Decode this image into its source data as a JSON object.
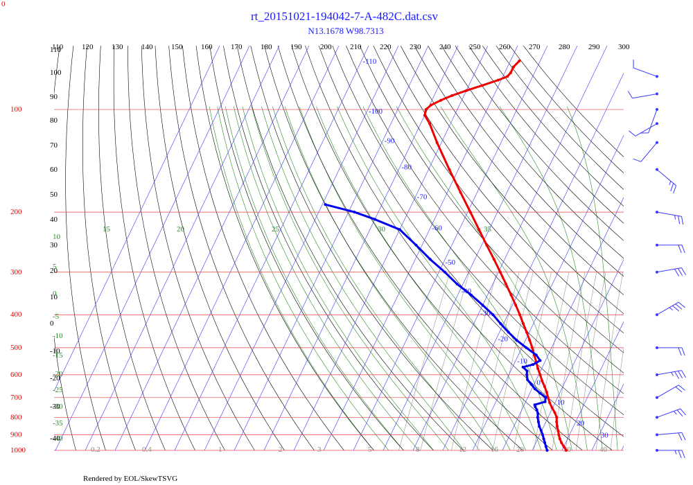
{
  "header": {
    "title": "rt_20151021-194042-7-A-482C.dat.csv",
    "subtitle": "N13.1678 W98.7313",
    "corner_label": "0",
    "footer": "Rendered by EOL/SkewTSVG"
  },
  "colors": {
    "temperature": "#ee0000",
    "dewpoint": "#0000ee",
    "isobar": "#e84040",
    "isotherm": "#3a3aff",
    "dry_adiabat": "#000000",
    "moist_adiabat": "#2a8a2a",
    "mixing_ratio": "#999999",
    "wind": "#3a3aff"
  },
  "chart_data": {
    "type": "skew-t",
    "pressure_levels_hpa": [
      "1000",
      "900",
      "800",
      "700",
      "600",
      "500",
      "400",
      "300",
      "200",
      "100"
    ],
    "top_temperature_labels": [
      "110",
      "120",
      "130",
      "140",
      "150",
      "160",
      "170",
      "180",
      "190",
      "200",
      "210",
      "220",
      "230",
      "240",
      "250",
      "260",
      "270",
      "280",
      "290",
      "300"
    ],
    "left_potential_temperature_labels": [
      "110",
      "100",
      "90",
      "80",
      "70",
      "60",
      "50",
      "40",
      "30",
      "20",
      "10",
      "0",
      "-10",
      "-20",
      "-30",
      "-40"
    ],
    "isotherm_labels_c": [
      "-110",
      "-100",
      "-90",
      "-80",
      "-70",
      "-60",
      "-50",
      "-40",
      "-30",
      "-20",
      "-10",
      "0",
      "10",
      "20",
      "30"
    ],
    "moist_adiabat_labels_top": [
      "15",
      "20",
      "25",
      "30",
      "35"
    ],
    "moist_adiabat_labels_left": [
      "10",
      "5",
      "0",
      "-5",
      "-10",
      "-15",
      "-20",
      "-25",
      "-30",
      "-35",
      "-40"
    ],
    "mixing_ratio_labels": [
      "0.2",
      "0.4",
      "1",
      "2",
      "3",
      "5",
      "8",
      "12",
      "16",
      "20",
      "30",
      "40"
    ],
    "temperature_profile": [
      {
        "p": 1000,
        "t": 21.4
      },
      {
        "p": 975,
        "t": 20.0
      },
      {
        "p": 950,
        "t": 18.6
      },
      {
        "p": 925,
        "t": 17.4
      },
      {
        "p": 900,
        "t": 16.4
      },
      {
        "p": 875,
        "t": 15.5
      },
      {
        "p": 850,
        "t": 14.5
      },
      {
        "p": 825,
        "t": 13.6
      },
      {
        "p": 800,
        "t": 12.9
      },
      {
        "p": 775,
        "t": 11.5
      },
      {
        "p": 750,
        "t": 9.8
      },
      {
        "p": 725,
        "t": 8.2
      },
      {
        "p": 700,
        "t": 6.8
      },
      {
        "p": 675,
        "t": 5.5
      },
      {
        "p": 650,
        "t": 3.9
      },
      {
        "p": 625,
        "t": 2.1
      },
      {
        "p": 600,
        "t": 0.5
      },
      {
        "p": 575,
        "t": -1.3
      },
      {
        "p": 550,
        "t": -2.9
      },
      {
        "p": 525,
        "t": -4.7
      },
      {
        "p": 500,
        "t": -6.5
      },
      {
        "p": 475,
        "t": -8.6
      },
      {
        "p": 450,
        "t": -10.9
      },
      {
        "p": 425,
        "t": -13.4
      },
      {
        "p": 400,
        "t": -16.0
      },
      {
        "p": 375,
        "t": -18.9
      },
      {
        "p": 350,
        "t": -22.1
      },
      {
        "p": 325,
        "t": -25.6
      },
      {
        "p": 300,
        "t": -29.4
      },
      {
        "p": 275,
        "t": -33.6
      },
      {
        "p": 250,
        "t": -38.3
      },
      {
        "p": 225,
        "t": -43.4
      },
      {
        "p": 200,
        "t": -49.1
      },
      {
        "p": 175,
        "t": -55.6
      },
      {
        "p": 150,
        "t": -63.0
      },
      {
        "p": 125,
        "t": -71.5
      },
      {
        "p": 110,
        "t": -77.0
      },
      {
        "p": 104,
        "t": -80.0
      },
      {
        "p": 100,
        "t": -80.5
      },
      {
        "p": 97,
        "t": -79.5
      },
      {
        "p": 94,
        "t": -77.0
      },
      {
        "p": 91,
        "t": -74.0
      },
      {
        "p": 88,
        "t": -70.0
      },
      {
        "p": 85,
        "t": -65.5
      },
      {
        "p": 82,
        "t": -61.0
      },
      {
        "p": 80,
        "t": -58.5
      },
      {
        "p": 78,
        "t": -58.0
      },
      {
        "p": 75,
        "t": -58.0
      },
      {
        "p": 72,
        "t": -57.0
      }
    ],
    "dewpoint_profile": [
      {
        "p": 1000,
        "td": 15.0
      },
      {
        "p": 975,
        "td": 14.0
      },
      {
        "p": 950,
        "td": 13.0
      },
      {
        "p": 925,
        "td": 12.0
      },
      {
        "p": 900,
        "td": 11.0
      },
      {
        "p": 875,
        "td": 9.8
      },
      {
        "p": 850,
        "td": 8.5
      },
      {
        "p": 825,
        "td": 7.5
      },
      {
        "p": 800,
        "td": 6.5
      },
      {
        "p": 780,
        "td": 6.0
      },
      {
        "p": 760,
        "td": 5.0
      },
      {
        "p": 745,
        "td": 4.0
      },
      {
        "p": 735,
        "td": 3.5
      },
      {
        "p": 720,
        "td": 6.5
      },
      {
        "p": 700,
        "td": 6.0
      },
      {
        "p": 680,
        "td": 3.5
      },
      {
        "p": 660,
        "td": 1.0
      },
      {
        "p": 640,
        "td": -1.0
      },
      {
        "p": 620,
        "td": -3.0
      },
      {
        "p": 600,
        "td": -4.0
      },
      {
        "p": 585,
        "td": -4.5
      },
      {
        "p": 570,
        "td": -6.5
      },
      {
        "p": 560,
        "td": -3.5
      },
      {
        "p": 545,
        "td": -1.8
      },
      {
        "p": 525,
        "td": -4.0
      },
      {
        "p": 500,
        "td": -8.5
      },
      {
        "p": 475,
        "td": -13.0
      },
      {
        "p": 450,
        "td": -17.0
      },
      {
        "p": 425,
        "td": -21.0
      },
      {
        "p": 400,
        "td": -25.0
      },
      {
        "p": 375,
        "td": -30.0
      },
      {
        "p": 350,
        "td": -35.5
      },
      {
        "p": 325,
        "td": -42.0
      },
      {
        "p": 300,
        "td": -48.0
      },
      {
        "p": 275,
        "td": -55.0
      },
      {
        "p": 250,
        "td": -62.0
      },
      {
        "p": 225,
        "td": -70.0
      },
      {
        "p": 210,
        "td": -80.0
      },
      {
        "p": 200,
        "td": -88.0
      },
      {
        "p": 190,
        "td": -99.0
      }
    ],
    "wind_barbs": [
      {
        "p": 1000,
        "dir": 90,
        "speed": 15
      },
      {
        "p": 900,
        "dir": 85,
        "speed": 20
      },
      {
        "p": 800,
        "dir": 70,
        "speed": 15
      },
      {
        "p": 700,
        "dir": 60,
        "speed": 20
      },
      {
        "p": 600,
        "dir": 80,
        "speed": 25
      },
      {
        "p": 500,
        "dir": 90,
        "speed": 20
      },
      {
        "p": 400,
        "dir": 60,
        "speed": 25
      },
      {
        "p": 300,
        "dir": 80,
        "speed": 30
      },
      {
        "p": 250,
        "dir": 90,
        "speed": 20
      },
      {
        "p": 200,
        "dir": 100,
        "speed": 15
      },
      {
        "p": 150,
        "dir": 130,
        "speed": 15
      },
      {
        "p": 125,
        "dir": 220,
        "speed": 10
      },
      {
        "p": 110,
        "dir": 240,
        "speed": 10
      },
      {
        "p": 100,
        "dir": 200,
        "speed": 10
      },
      {
        "p": 90,
        "dir": 260,
        "speed": 10
      },
      {
        "p": 80,
        "dir": 290,
        "speed": 10
      }
    ]
  }
}
